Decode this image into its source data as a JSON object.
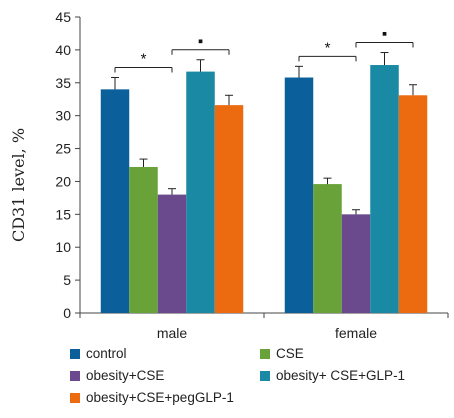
{
  "chart_data": {
    "type": "bar",
    "title": "",
    "xlabel": "",
    "ylabel": "CD31 level, %",
    "ylim": [
      0,
      45
    ],
    "yticks": [
      0,
      5,
      10,
      15,
      20,
      25,
      30,
      35,
      40,
      45
    ],
    "categories": [
      "male",
      "female"
    ],
    "series": [
      {
        "name": "control",
        "color": "#0b5f9a",
        "values": [
          34.0,
          35.8
        ],
        "errors": [
          1.8,
          1.7
        ]
      },
      {
        "name": "CSE",
        "color": "#6aa23a",
        "values": [
          22.2,
          19.6
        ],
        "errors": [
          1.2,
          0.9
        ]
      },
      {
        "name": "obesity+CSE",
        "color": "#6a4a8c",
        "values": [
          18.0,
          15.0
        ],
        "errors": [
          0.9,
          0.7
        ]
      },
      {
        "name": "obesity+ CSE+GLP-1",
        "color": "#1a8aa4",
        "values": [
          36.7,
          37.7
        ],
        "errors": [
          1.8,
          1.9
        ]
      },
      {
        "name": "obesity+CSE+pegGLP-1",
        "color": "#ec6a10",
        "values": [
          31.6,
          33.1
        ],
        "errors": [
          1.5,
          1.6
        ]
      }
    ],
    "annotations": [
      {
        "category": "male",
        "from_series": 0,
        "to_series": 2,
        "label": "*"
      },
      {
        "category": "male",
        "from_series": 2,
        "to_series": 4,
        "label": "▪"
      },
      {
        "category": "female",
        "from_series": 0,
        "to_series": 2,
        "label": "*"
      },
      {
        "category": "female",
        "from_series": 2,
        "to_series": 4,
        "label": "▪"
      }
    ],
    "legend_position": "bottom",
    "grid": false
  }
}
